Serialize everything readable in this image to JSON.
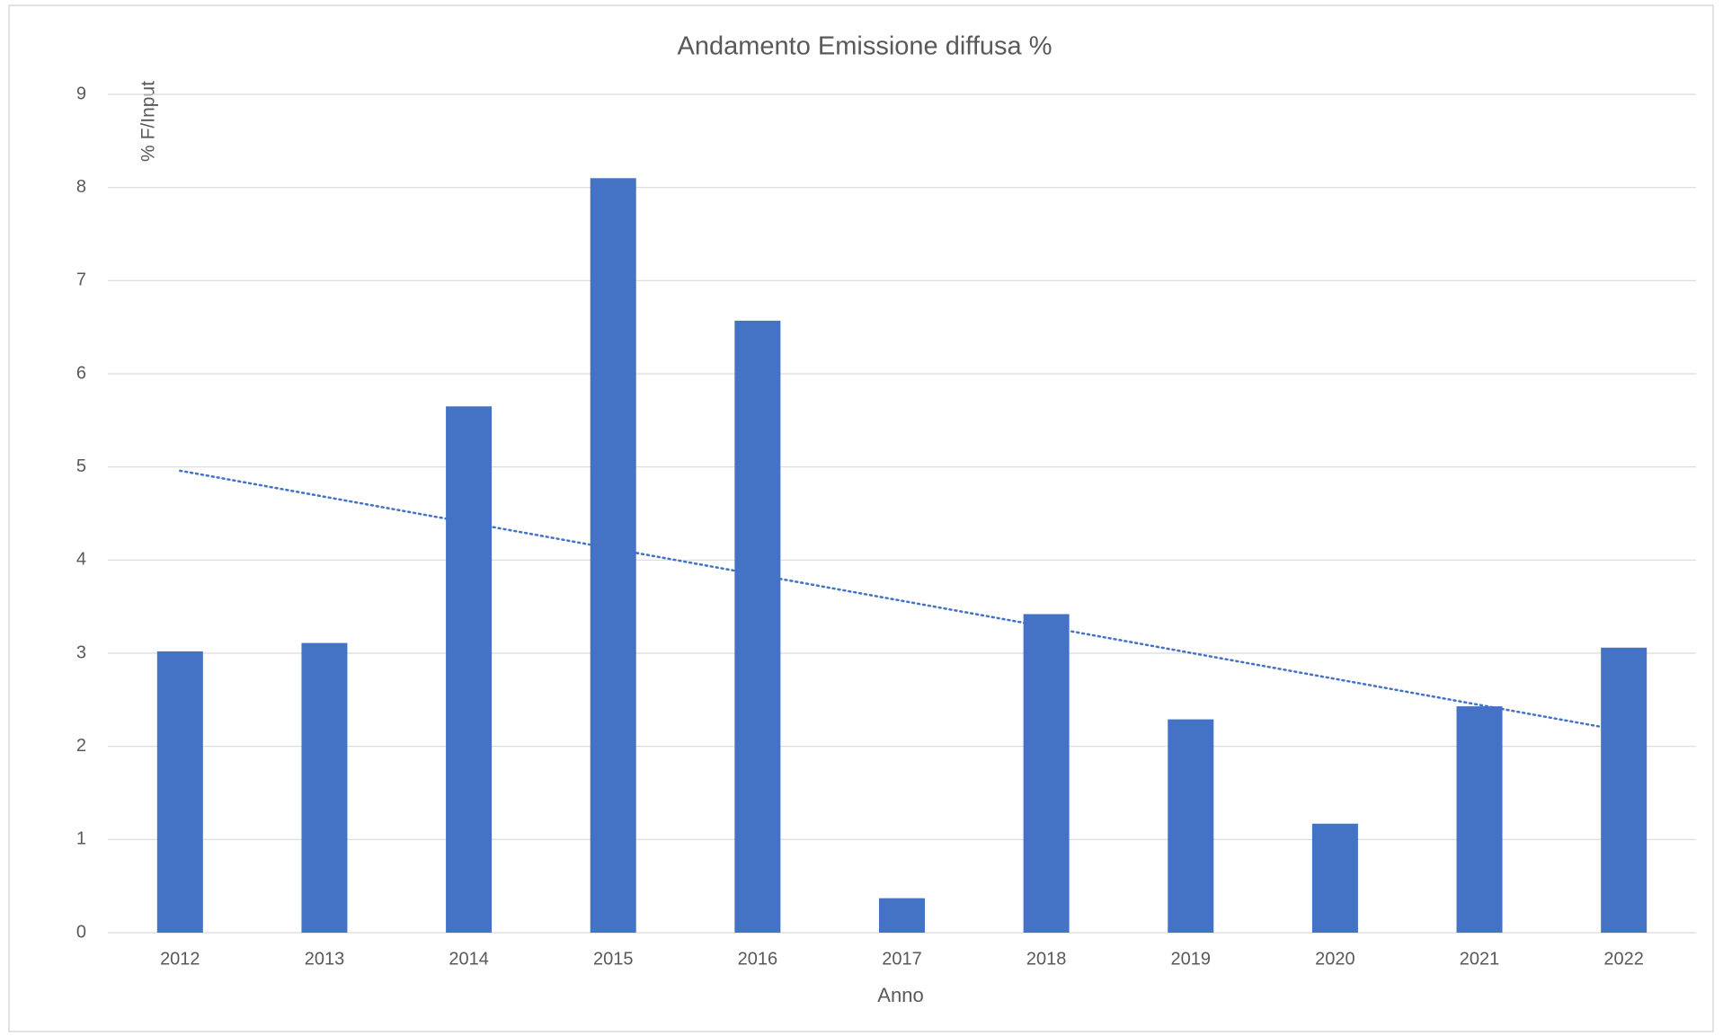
{
  "chart_data": {
    "type": "bar",
    "title": "Andamento Emissione diffusa %",
    "x_label": "Anno",
    "y_label": "% F/Input",
    "categories": [
      "2012",
      "2013",
      "2014",
      "2015",
      "2016",
      "2017",
      "2018",
      "2019",
      "2020",
      "2021",
      "2022"
    ],
    "values": [
      3.02,
      3.11,
      5.65,
      8.1,
      6.57,
      0.37,
      3.42,
      2.29,
      1.17,
      2.43,
      3.06
    ],
    "color": "#4472c4",
    "trendline": "linear",
    "ylim": [
      0,
      9
    ],
    "yticks": [
      0,
      1,
      2,
      3,
      4,
      5,
      6,
      7,
      8,
      9
    ],
    "grid": true
  }
}
